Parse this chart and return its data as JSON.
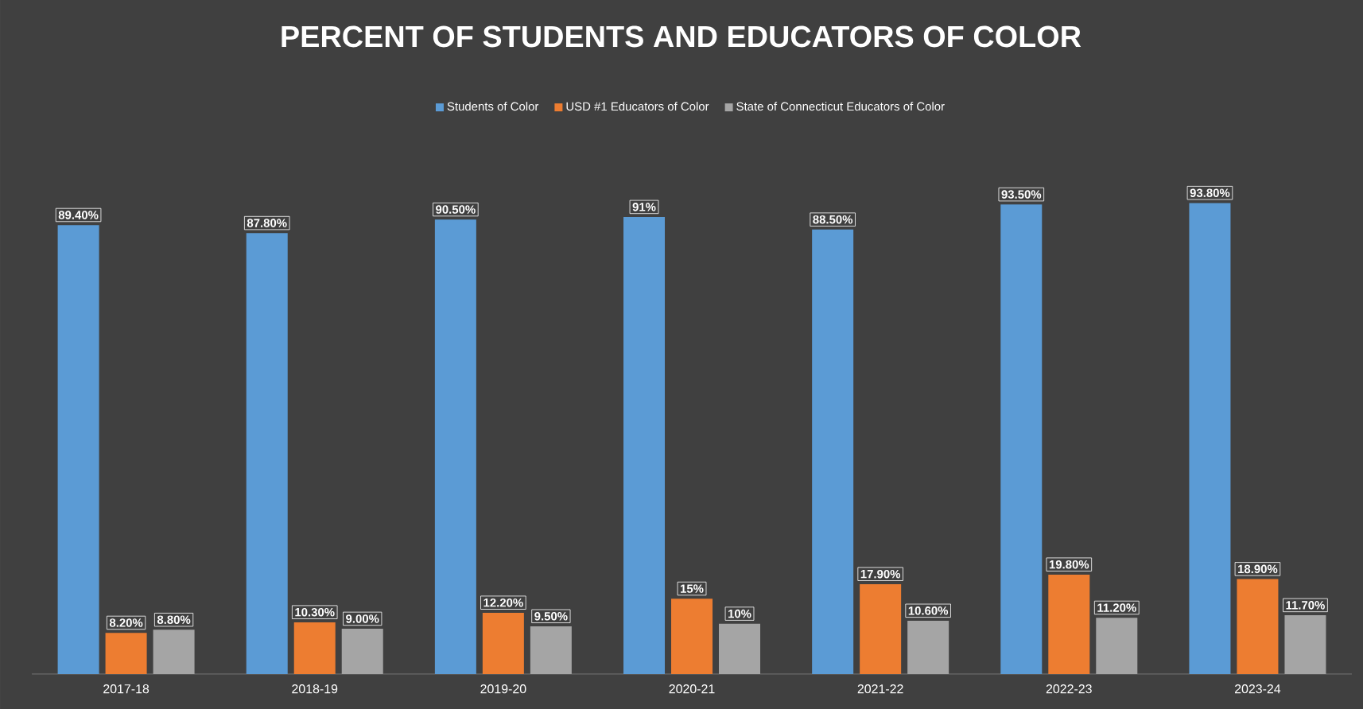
{
  "chart_data": {
    "type": "bar",
    "title": "PERCENT OF STUDENTS AND EDUCATORS OF COLOR",
    "categories": [
      "2017-18",
      "2018-19",
      "2019-20",
      "2020-21",
      "2021-22",
      "2022-23",
      "2023-24"
    ],
    "series": [
      {
        "name": "Students of Color",
        "color": "#5b9bd5",
        "values": [
          89.4,
          87.8,
          90.5,
          91,
          88.5,
          93.5,
          93.8
        ],
        "value_labels": [
          "89.40%",
          "87.80%",
          "90.50%",
          "91%",
          "88.50%",
          "93.50%",
          "93.80%"
        ]
      },
      {
        "name": "USD #1 Educators of Color",
        "color": "#ed7d31",
        "values": [
          8.2,
          10.3,
          12.2,
          15,
          17.9,
          19.8,
          18.9
        ],
        "value_labels": [
          "8.20%",
          "10.30%",
          "12.20%",
          "15%",
          "17.90%",
          "19.80%",
          "18.90%"
        ]
      },
      {
        "name": "State of Connecticut Educators of Color",
        "color": "#a5a5a5",
        "values": [
          8.8,
          9.0,
          9.5,
          10,
          10.6,
          11.2,
          11.7
        ],
        "value_labels": [
          "8.80%",
          "9.00%",
          "9.50%",
          "10%",
          "10.60%",
          "11.20%",
          "11.70%"
        ]
      }
    ],
    "tick_labels": "x",
    "legend": "top"
  }
}
